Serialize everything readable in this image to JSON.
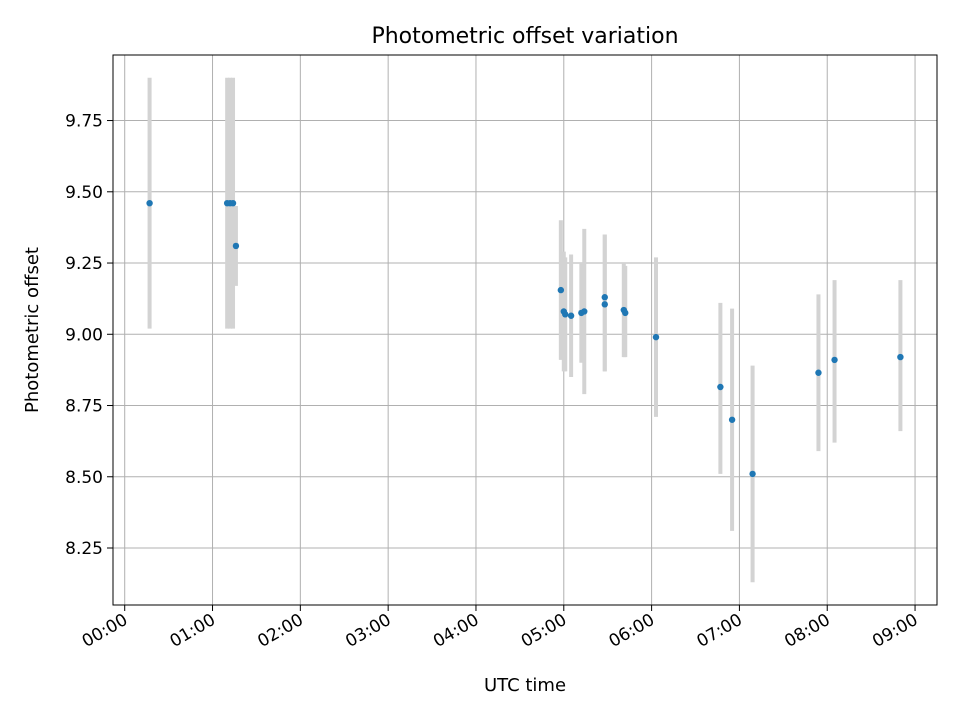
{
  "chart_data": {
    "type": "scatter",
    "title": "Photometric offset variation",
    "xlabel": "UTC time",
    "ylabel": "Photometric offset",
    "x_ticks": [
      "00:00",
      "01:00",
      "02:00",
      "03:00",
      "04:00",
      "05:00",
      "06:00",
      "07:00",
      "08:00",
      "09:00"
    ],
    "y_ticks": [
      "8.25",
      "8.50",
      "8.75",
      "9.00",
      "9.25",
      "9.50",
      "9.75"
    ],
    "xlim": [
      "23:52",
      "09:15"
    ],
    "ylim": [
      8.05,
      9.98
    ],
    "grid": true,
    "marker_color": "#1f77b4",
    "errorbar_color": "#d3d3d3",
    "points": [
      {
        "t": "00:17",
        "y": 9.46,
        "lo": 9.02,
        "hi": 9.9
      },
      {
        "t": "01:10",
        "y": 9.46,
        "lo": 9.02,
        "hi": 9.9
      },
      {
        "t": "01:12",
        "y": 9.46,
        "lo": 9.02,
        "hi": 9.9
      },
      {
        "t": "01:14",
        "y": 9.46,
        "lo": 9.02,
        "hi": 9.9
      },
      {
        "t": "01:16",
        "y": 9.31,
        "lo": 9.17,
        "hi": 9.45
      },
      {
        "t": "04:58",
        "y": 9.155,
        "lo": 8.91,
        "hi": 9.4
      },
      {
        "t": "05:00",
        "y": 9.08,
        "lo": 8.87,
        "hi": 9.29
      },
      {
        "t": "05:01",
        "y": 9.07,
        "lo": 8.87,
        "hi": 9.27
      },
      {
        "t": "05:05",
        "y": 9.065,
        "lo": 8.85,
        "hi": 9.28
      },
      {
        "t": "05:12",
        "y": 9.075,
        "lo": 8.9,
        "hi": 9.25
      },
      {
        "t": "05:14",
        "y": 9.08,
        "lo": 8.79,
        "hi": 9.37
      },
      {
        "t": "05:28",
        "y": 9.13,
        "lo": 8.87,
        "hi": 9.35
      },
      {
        "t": "05:28",
        "y": 9.105,
        "lo": 8.87,
        "hi": 9.35
      },
      {
        "t": "05:41",
        "y": 9.085,
        "lo": 8.92,
        "hi": 9.25
      },
      {
        "t": "05:42",
        "y": 9.075,
        "lo": 8.92,
        "hi": 9.24
      },
      {
        "t": "06:03",
        "y": 8.99,
        "lo": 8.71,
        "hi": 9.27
      },
      {
        "t": "06:47",
        "y": 8.815,
        "lo": 8.51,
        "hi": 9.11
      },
      {
        "t": "06:55",
        "y": 8.7,
        "lo": 8.31,
        "hi": 9.09
      },
      {
        "t": "07:09",
        "y": 8.51,
        "lo": 8.13,
        "hi": 8.89
      },
      {
        "t": "07:54",
        "y": 8.865,
        "lo": 8.59,
        "hi": 9.14
      },
      {
        "t": "08:05",
        "y": 8.91,
        "lo": 8.62,
        "hi": 9.19
      },
      {
        "t": "08:50",
        "y": 8.92,
        "lo": 8.66,
        "hi": 9.19
      }
    ]
  }
}
